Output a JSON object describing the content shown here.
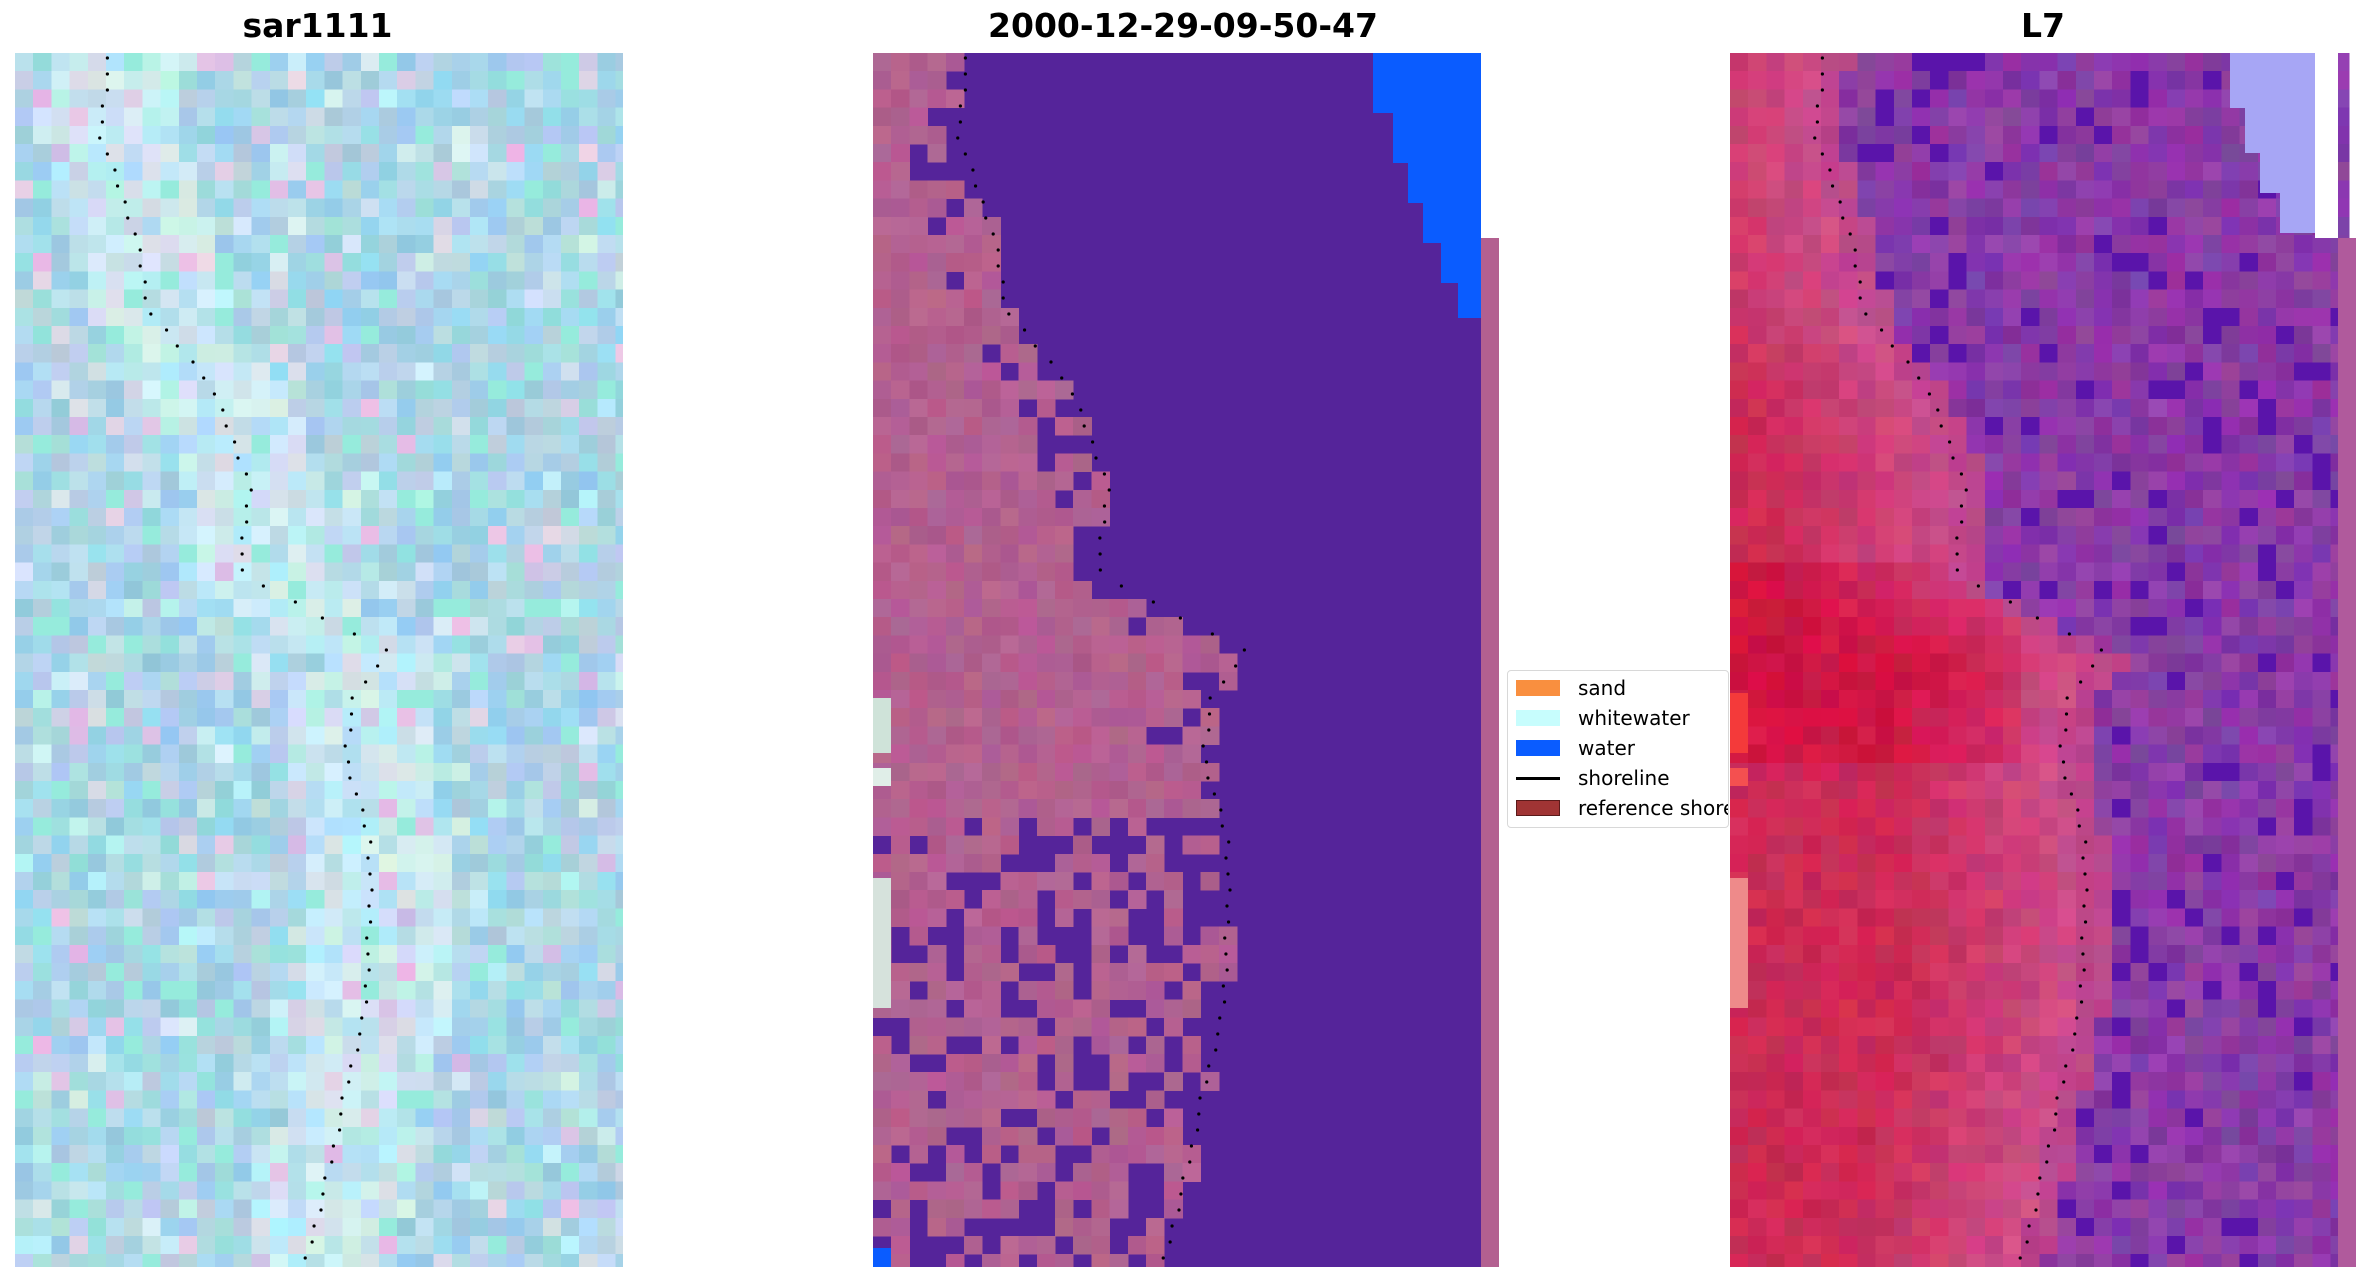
{
  "panels": [
    {
      "title": "sar1111"
    },
    {
      "title": "2000-12-29-09-50-47"
    },
    {
      "title": "L7"
    }
  ],
  "legend": {
    "items": [
      {
        "label": "sand",
        "color": "#f98f3f",
        "kind": "patch"
      },
      {
        "label": "whitewater",
        "color": "#c7fdfd",
        "kind": "patch"
      },
      {
        "label": "water",
        "color": "#0a5cff",
        "kind": "patch"
      },
      {
        "label": "shoreline",
        "color": "#000000",
        "kind": "line"
      },
      {
        "label": "reference shoreline",
        "color": "#a03434",
        "kind": "patch"
      }
    ]
  },
  "colors": {
    "sar_base": "#a9d4e6",
    "classified_water": "#55249a",
    "classified_land": "#b36090",
    "classified_blue_patch": "#0a5cff",
    "l7_land": "#cc2a56",
    "l7_water": "#8a3ba6",
    "l7_corner_light": "#a7a6f5"
  }
}
